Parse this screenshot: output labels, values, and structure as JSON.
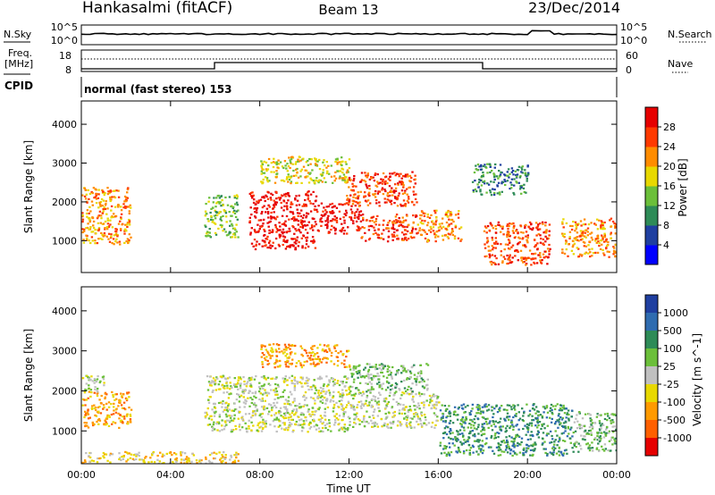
{
  "header": {
    "station": "Hankasalmi (fitACF)",
    "beam": "Beam 13",
    "date": "23/Dec/2014"
  },
  "strip": {
    "nsky_label": "N.Sky",
    "nsearch_label": "N.Search",
    "nsky_ticks": [
      "10^5",
      "10^0"
    ],
    "freq_label_1": "Freq.",
    "freq_label_2": "[MHz]",
    "freq_ticks": [
      "18",
      "8"
    ],
    "nave_label": "Nave",
    "nave_ticks": [
      "60",
      "0"
    ],
    "cpid_label": "CPID",
    "cpid_text": "normal (fast stereo) 153"
  },
  "colors": {
    "power": [
      "#0000ff",
      "#1f3fa0",
      "#2e8b57",
      "#6bbf3a",
      "#e8d800",
      "#ff8c00",
      "#ff3a00",
      "#e60000"
    ],
    "velocity": [
      "#1f3fa0",
      "#2f6cb0",
      "#2e8b57",
      "#6bbf3a",
      "#c0c0c0",
      "#e8d800",
      "#ff9a00",
      "#ff6000",
      "#e60000"
    ]
  },
  "chart_data": [
    {
      "type": "heatmap",
      "name": "power",
      "xlabel": "",
      "ylabel": "Slant Range [km]",
      "yticks": [
        1000,
        2000,
        3000,
        4000
      ],
      "ylim": [
        180,
        4600
      ],
      "colorbar_label": "Power [dB]",
      "colorbar_ticks": [
        "4",
        "8",
        "12",
        "16",
        "20",
        "24",
        "28"
      ],
      "colorbar_range": [
        0,
        32
      ],
      "regions": [
        {
          "t0": 0.0,
          "t1": 2.2,
          "r0": 900,
          "r1": 2400,
          "level": 5
        },
        {
          "t0": 5.5,
          "t1": 7.0,
          "r0": 1100,
          "r1": 2200,
          "level": 3
        },
        {
          "t0": 7.5,
          "t1": 10.5,
          "r0": 800,
          "r1": 2300,
          "level": 7
        },
        {
          "t0": 10.5,
          "t1": 12.5,
          "r0": 1200,
          "r1": 2000,
          "level": 7
        },
        {
          "t0": 11.8,
          "t1": 15.0,
          "r0": 1900,
          "r1": 2800,
          "level": 6
        },
        {
          "t0": 12.5,
          "t1": 15.0,
          "r0": 1000,
          "r1": 1700,
          "level": 6
        },
        {
          "t0": 15.0,
          "t1": 17.0,
          "r0": 1000,
          "r1": 1800,
          "level": 5
        },
        {
          "t0": 18.0,
          "t1": 21.0,
          "r0": 400,
          "r1": 1500,
          "level": 6
        },
        {
          "t0": 21.5,
          "t1": 24.0,
          "r0": 600,
          "r1": 1600,
          "level": 5
        },
        {
          "t0": 8.0,
          "t1": 12.0,
          "r0": 2500,
          "r1": 3200,
          "level": 4
        },
        {
          "t0": 17.5,
          "t1": 20.0,
          "r0": 2200,
          "r1": 3000,
          "level": 2
        }
      ]
    },
    {
      "type": "heatmap",
      "name": "velocity",
      "xlabel": "Time UT",
      "ylabel": "Slant Range [km]",
      "xticks": [
        "00:00",
        "04:00",
        "08:00",
        "12:00",
        "16:00",
        "20:00",
        "00:00"
      ],
      "xlim": [
        0,
        24
      ],
      "yticks": [
        1000,
        2000,
        3000,
        4000
      ],
      "ylim": [
        180,
        4600
      ],
      "colorbar_label": "Velocity [m s^-1]",
      "colorbar_ticks": [
        "1000",
        "500",
        "100",
        "25",
        "-25",
        "-100",
        "-500",
        "-1000"
      ],
      "regions": [
        {
          "t0": 0.0,
          "t1": 2.2,
          "r0": 1100,
          "r1": 2000,
          "level": 6
        },
        {
          "t0": 0.0,
          "t1": 1.0,
          "r0": 2000,
          "r1": 2400,
          "level": 4
        },
        {
          "t0": 5.5,
          "t1": 12.0,
          "r0": 1000,
          "r1": 2400,
          "level": 4
        },
        {
          "t0": 12.0,
          "t1": 16.0,
          "r0": 1100,
          "r1": 2000,
          "level": 4
        },
        {
          "t0": 8.0,
          "t1": 12.0,
          "r0": 2600,
          "r1": 3200,
          "level": 6
        },
        {
          "t0": 12.0,
          "t1": 15.5,
          "r0": 2000,
          "r1": 2700,
          "level": 3
        },
        {
          "t0": 16.0,
          "t1": 22.0,
          "r0": 400,
          "r1": 1700,
          "level": 2
        },
        {
          "t0": 22.0,
          "t1": 24.0,
          "r0": 500,
          "r1": 1500,
          "level": 3
        },
        {
          "t0": 0.0,
          "t1": 7.0,
          "r0": 200,
          "r1": 500,
          "level": 5
        }
      ]
    }
  ]
}
